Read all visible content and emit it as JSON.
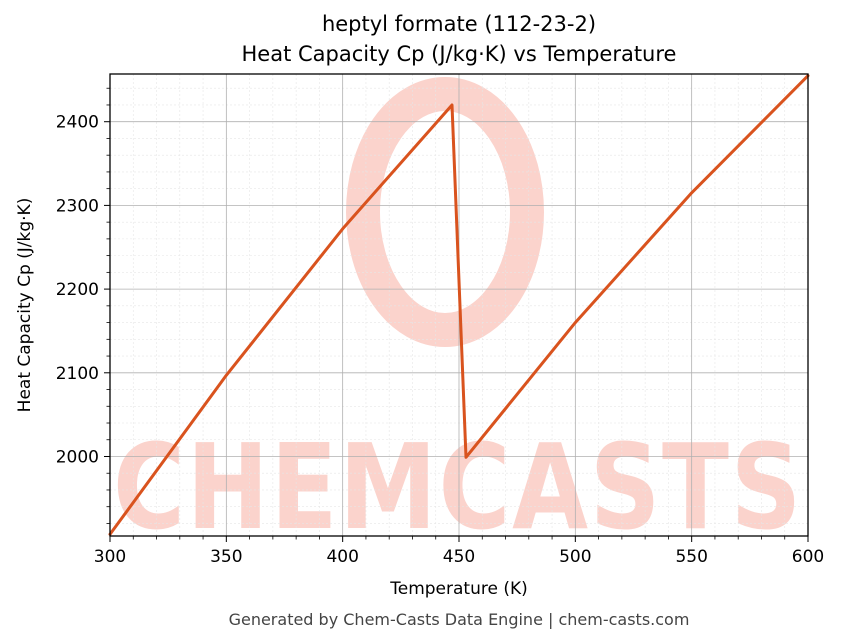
{
  "chart_data": {
    "type": "line",
    "title": "heptyl formate (112-23-2)",
    "subtitle": "Heat Capacity Cp (J/kg·K) vs Temperature",
    "xlabel": "Temperature (K)",
    "ylabel": "Heat Capacity Cp (J/kg·K)",
    "xlim": [
      300,
      600
    ],
    "ylim": [
      1905,
      2457
    ],
    "xticks": [
      300,
      350,
      400,
      450,
      500,
      550,
      600
    ],
    "yticks": [
      2000,
      2100,
      2200,
      2300,
      2400
    ],
    "grid": true,
    "legend": "none",
    "series": [
      {
        "color": "#d9531e",
        "x": [
          300,
          350,
          400,
          447,
          453,
          500,
          550,
          600
        ],
        "y": [
          1907,
          2097,
          2272,
          2420,
          1999,
          2160,
          2315,
          2455
        ]
      }
    ]
  },
  "watermark": "CHEMCASTS",
  "footer": "Generated by Chem-Casts Data Engine | chem-casts.com"
}
